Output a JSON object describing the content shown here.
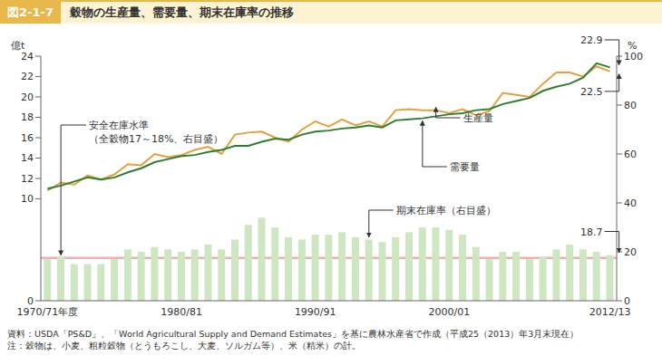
{
  "chart_data": {
    "type": "combo",
    "figure_label": "図2-1-7",
    "title": "穀物の生産量、需要量、期末在庫率の推移",
    "categories": [
      "1970/71年度",
      null,
      null,
      null,
      null,
      null,
      null,
      null,
      null,
      null,
      "1980/81",
      null,
      null,
      null,
      null,
      null,
      null,
      null,
      null,
      null,
      "1990/91",
      null,
      null,
      null,
      null,
      null,
      null,
      null,
      null,
      null,
      "2000/01",
      null,
      null,
      null,
      null,
      null,
      null,
      null,
      null,
      null,
      null,
      null,
      "2012/13"
    ],
    "series": [
      {
        "name": "期末在庫率（右目盛）",
        "type": "bar",
        "axis": "y2",
        "color": "#cfe6c2",
        "values": [
          17,
          18,
          15,
          15,
          15,
          17,
          21,
          20,
          22,
          21,
          20,
          21,
          23,
          21,
          25,
          31,
          34,
          30,
          26,
          25,
          27,
          27,
          28,
          26,
          25,
          24,
          26,
          28,
          30,
          30,
          29,
          27,
          22,
          17,
          20,
          20,
          17,
          18,
          21,
          23,
          21,
          20,
          18.7
        ]
      },
      {
        "name": "生産量",
        "type": "line",
        "color": "#e3a13c",
        "values": [
          10.8,
          11.6,
          11.4,
          12.3,
          11.9,
          12.4,
          13.4,
          13.3,
          14.4,
          14.1,
          14.3,
          14.8,
          15.1,
          14.4,
          16.3,
          16.5,
          16.6,
          16.0,
          15.6,
          16.8,
          17.6,
          17.1,
          17.8,
          17.2,
          17.6,
          17.1,
          18.7,
          18.8,
          18.7,
          18.7,
          18.4,
          18.8,
          18.2,
          18.6,
          20.4,
          20.2,
          20.0,
          21.3,
          22.4,
          22.4,
          22.0,
          23.0,
          22.5
        ]
      },
      {
        "name": "需要量",
        "type": "line",
        "color": "#2e7d32",
        "values": [
          11.0,
          11.3,
          11.7,
          12.1,
          11.9,
          12.1,
          12.6,
          13.0,
          13.6,
          13.9,
          14.2,
          14.3,
          14.6,
          14.8,
          15.2,
          15.2,
          15.6,
          15.9,
          15.8,
          16.3,
          16.6,
          16.7,
          16.9,
          17.0,
          17.2,
          17.0,
          17.7,
          17.8,
          17.9,
          18.1,
          18.3,
          18.4,
          18.7,
          18.8,
          19.3,
          19.6,
          19.9,
          20.6,
          21.0,
          21.3,
          21.9,
          23.3,
          22.9
        ]
      }
    ],
    "y_label": "億t",
    "ylim": [
      0,
      24
    ],
    "yticks": [
      0,
      10,
      12,
      14,
      16,
      18,
      20,
      22,
      24
    ],
    "y2_label": "%",
    "y2lim": [
      0,
      100
    ],
    "y2ticks": [
      0,
      20,
      40,
      60,
      80,
      100
    ],
    "safety_band": {
      "lines": [
        "安全在庫水準",
        "（全穀物17～18%、右目盛）"
      ],
      "y2": [
        17,
        18
      ],
      "color": "#f2a5a5"
    },
    "end_labels": [
      {
        "series": "需要量",
        "value": 22.9
      },
      {
        "series": "生産量",
        "value": 22.5
      },
      {
        "series": "期末在庫率（右目盛）",
        "value": 18.7
      }
    ],
    "source": "資料：USDA「PS&D」、「World Agricultural Supply and Demand Estimates」を基に農林水産省で作成（平成25（2013）年3月末現在）",
    "note": "注：穀物は、小麦、粗粒穀物（とうもろこし、大麦、ソルガム等）、米（精米）の計。",
    "grid": false,
    "legend": false
  }
}
